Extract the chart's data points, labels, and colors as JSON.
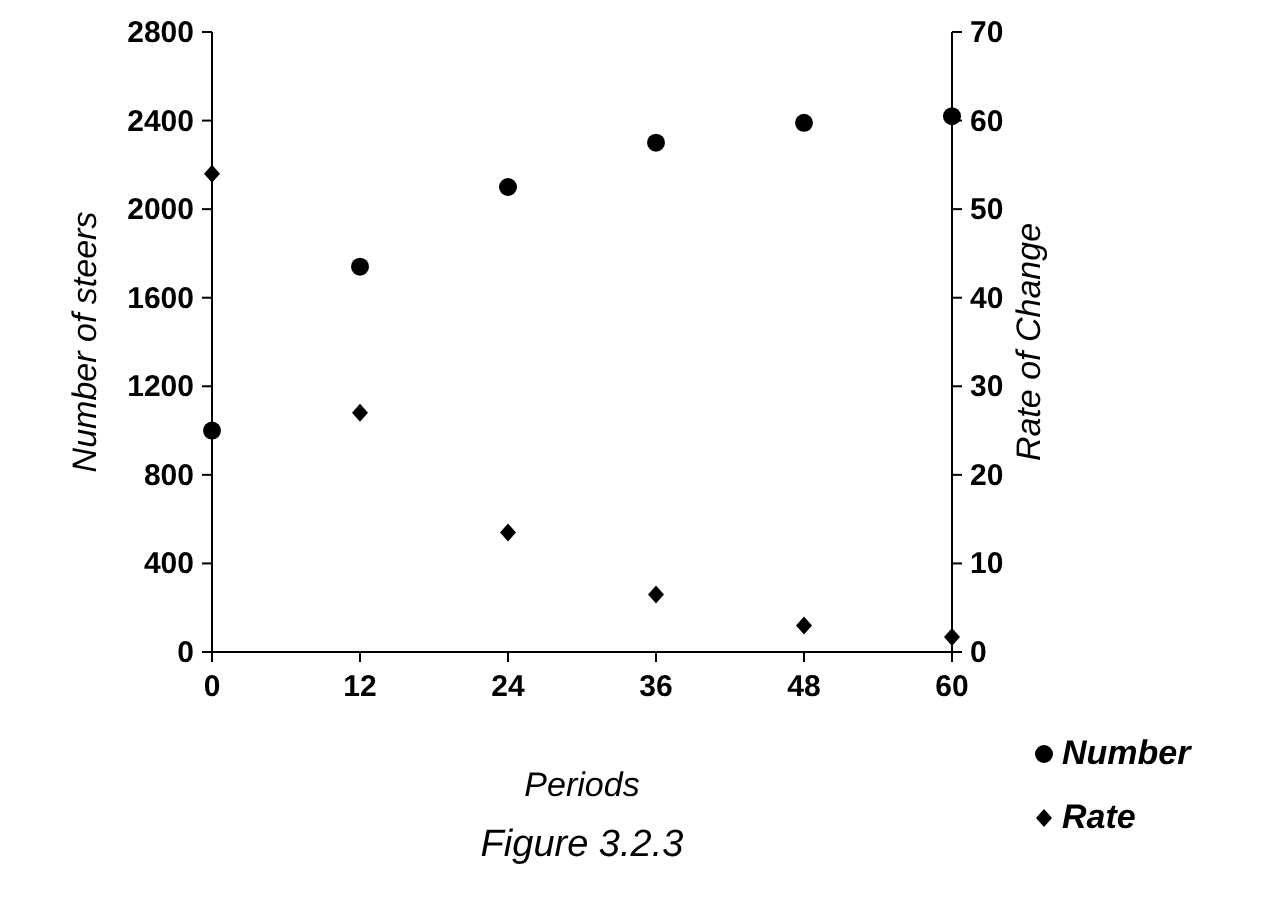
{
  "chart_data": {
    "type": "scatter",
    "title": "Figure 3.2.3",
    "xlabel": "Periods",
    "ylabel": "Number of steers",
    "y2label": "Rate of Change",
    "x": [
      0,
      12,
      24,
      36,
      48,
      60
    ],
    "series": [
      {
        "name": "Number",
        "color": "#000000",
        "marker": "circle",
        "values": [
          1000,
          1740,
          2100,
          2300,
          2390,
          2420
        ]
      },
      {
        "name": "Rate",
        "color": "#000000",
        "marker": "diamond",
        "axis": "y2",
        "values": [
          54,
          27,
          13.5,
          6.5,
          3,
          1.7
        ]
      }
    ],
    "xlim": [
      0,
      60
    ],
    "xticks": [
      0,
      12,
      24,
      36,
      48,
      60
    ],
    "ylim": [
      0,
      2800
    ],
    "yticks": [
      0,
      400,
      800,
      1200,
      1600,
      2000,
      2400,
      2800
    ],
    "y2lim": [
      0,
      70
    ],
    "y2ticks": [
      0,
      10,
      20,
      30,
      40,
      50,
      60,
      70
    ],
    "grid": false,
    "legend": "bottom right"
  }
}
